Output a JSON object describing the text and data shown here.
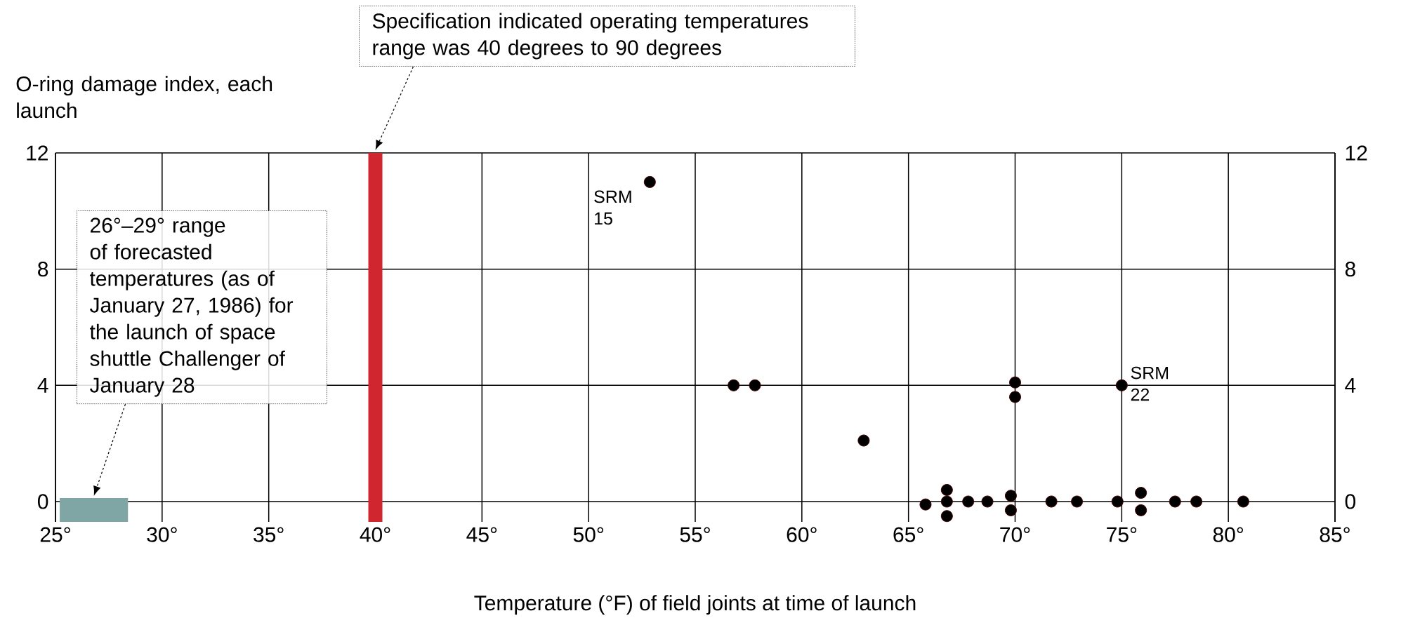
{
  "chart_data": {
    "type": "scatter",
    "xlabel": "Temperature (°F) of field joints at time of launch",
    "ylabel": "O-ring damage index, each launch",
    "x": [
      52.87,
      56.8,
      57.8,
      62.9,
      70.0,
      70.0,
      75.0,
      65.8,
      66.8,
      66.8,
      66.8,
      67.8,
      68.7,
      69.8,
      69.8,
      71.7,
      72.9,
      74.8,
      75.9,
      75.9,
      77.5,
      78.5,
      80.7
    ],
    "values": [
      11,
      4,
      4,
      2.1,
      4.1,
      3.6,
      4,
      -0.1,
      0.4,
      0,
      -0.5,
      0,
      0,
      0.2,
      -0.3,
      0,
      0,
      0,
      0.3,
      -0.3,
      0,
      0,
      0
    ],
    "color": "#000000",
    "grid": true,
    "xlim": [
      25,
      85
    ],
    "ylim": [
      -0.7,
      12
    ],
    "y2lim": [
      -0.7,
      12
    ],
    "xticks": [
      {
        "value": 25,
        "label": "25°"
      },
      {
        "value": 30,
        "label": "30°"
      },
      {
        "value": 35,
        "label": "35°"
      },
      {
        "value": 40,
        "label": "40°"
      },
      {
        "value": 45,
        "label": "45°"
      },
      {
        "value": 50,
        "label": "50°"
      },
      {
        "value": 55,
        "label": "55°"
      },
      {
        "value": 60,
        "label": "60°"
      },
      {
        "value": 65,
        "label": "65°"
      },
      {
        "value": 70,
        "label": "70°"
      },
      {
        "value": 75,
        "label": "75°"
      },
      {
        "value": 80,
        "label": "80°"
      },
      {
        "value": 85,
        "label": "85°"
      }
    ],
    "yticks": [
      0,
      4,
      8,
      12
    ],
    "y2ticks": [
      0,
      4,
      8,
      12
    ],
    "ref_lines": [
      {
        "axis": "x",
        "value": 40,
        "color": "#d0262f"
      }
    ],
    "bands": [
      {
        "axis": "x",
        "from": 25.2,
        "to": 28.4,
        "color": "#7fa6a4"
      }
    ],
    "annotations": [
      "Specification indicated operating temperatures range was 40 degrees to 90 degrees",
      "26°–29° range of forecasted temperatures (as of January 27, 1986) for the launch of space shuttle Challenger of January 28",
      {
        "text": "SRM 15",
        "x": 52.87,
        "y": 11
      },
      {
        "text": "SRM 22",
        "x": 75.0,
        "y": 4
      }
    ]
  }
}
